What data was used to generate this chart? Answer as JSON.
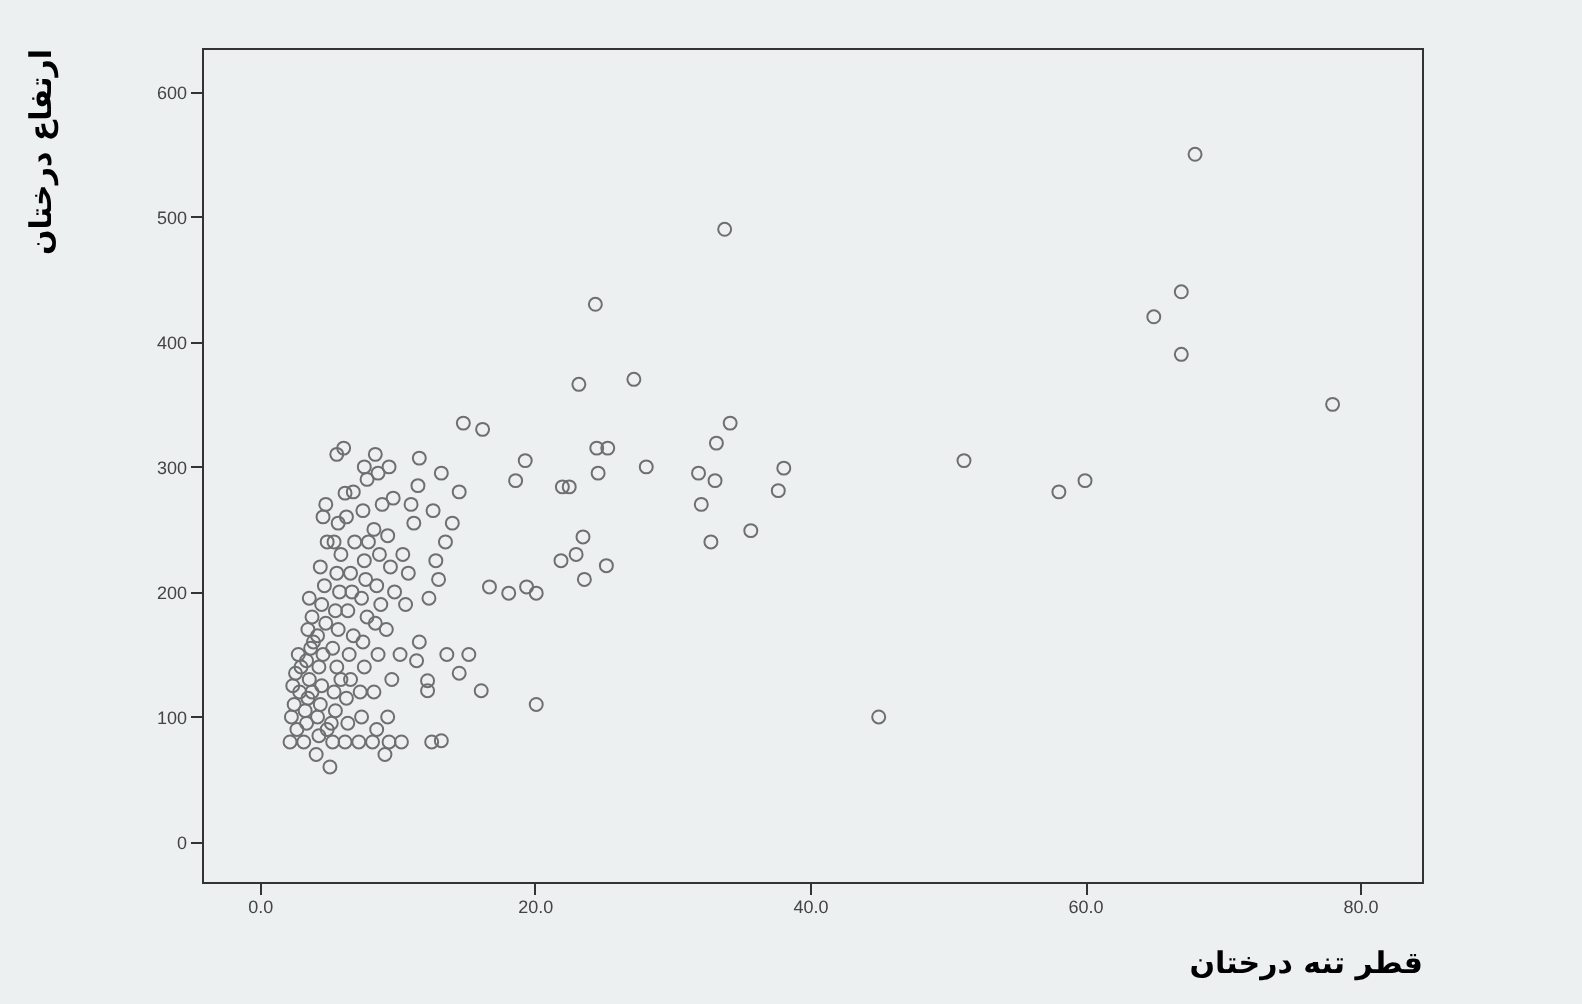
{
  "chart_data": {
    "type": "scatter",
    "xlabel": "قطر تنه درختان",
    "ylabel": "ارتفاع درختان",
    "marker": "circle",
    "xlim": [
      -4.2,
      84.5
    ],
    "ylim": [
      -32,
      635
    ],
    "xticks": [
      {
        "value": 0,
        "label": "0.0"
      },
      {
        "value": 20,
        "label": "20.0"
      },
      {
        "value": 40,
        "label": "40.0"
      },
      {
        "value": 60,
        "label": "60.0"
      },
      {
        "value": 80,
        "label": "80.0"
      }
    ],
    "yticks": [
      0,
      100,
      200,
      300,
      400,
      500,
      600
    ],
    "x": [
      2.2,
      2.3,
      2.5,
      2.4,
      2.6,
      2.8,
      2.7,
      2.9,
      3.0,
      3.2,
      3.4,
      3.3,
      3.5,
      3.6,
      3.4,
      3.7,
      3.5,
      3.8,
      3.6,
      3.9,
      3.8,
      4.1,
      4.3,
      4.2,
      4.4,
      4.5,
      4.3,
      4.6,
      4.2,
      4.8,
      4.5,
      4.7,
      4.4,
      4.9,
      4.6,
      4.8,
      4.9,
      5.1,
      5.3,
      5.2,
      5.5,
      5.4,
      5.6,
      5.3,
      5.7,
      5.5,
      5.8,
      5.6,
      5.9,
      5.4,
      5.7,
      5.6,
      5.9,
      6.2,
      6.4,
      6.3,
      6.6,
      6.5,
      6.8,
      6.4,
      6.7,
      6.6,
      6.9,
      6.3,
      6.8,
      6.1,
      7.2,
      7.4,
      7.3,
      7.6,
      7.5,
      7.8,
      7.4,
      7.7,
      7.6,
      7.9,
      7.5,
      7.8,
      7.6,
      8.2,
      8.5,
      8.3,
      8.6,
      8.4,
      8.8,
      8.5,
      8.7,
      8.3,
      8.9,
      8.6,
      8.4,
      9.1,
      9.4,
      9.3,
      9.6,
      9.2,
      9.8,
      9.5,
      9.3,
      9.7,
      9.4,
      10.3,
      10.6,
      10.4,
      11.2,
      11.0,
      10.8,
      11.5,
      10.2,
      12.5,
      12.3,
      13.0,
      12.8,
      13.5,
      14.0,
      12.6,
      14.5,
      68,
      67,
      65,
      67,
      78,
      51.2,
      58.1,
      60,
      38.1,
      37.7,
      33.8,
      24.4,
      23.2,
      27.2,
      34.2,
      33.2,
      31.9,
      33.1,
      32.1,
      28.1,
      24.5,
      25.3,
      24.6,
      22,
      22.5,
      19.3,
      18.6,
      14.8,
      16.2,
      13.2,
      11.6,
      6.2,
      45,
      20.1,
      35.7,
      32.8,
      23.5,
      23,
      21.9,
      23.6,
      25.2,
      20.1,
      19.4,
      18.1,
      16.7,
      16.1,
      15.2,
      13.6,
      14.5,
      12.2,
      12.2,
      11.4,
      13.2,
      11.6
    ],
    "series": [
      {
        "color": "#6f6f6f",
        "values": [
          80,
          100,
          110,
          125,
          135,
          150,
          90,
          120,
          140,
          80,
          95,
          105,
          115,
          130,
          145,
          155,
          170,
          180,
          195,
          160,
          120,
          70,
          85,
          100,
          110,
          125,
          140,
          150,
          165,
          175,
          190,
          205,
          220,
          240,
          260,
          270,
          90,
          60,
          80,
          95,
          105,
          120,
          140,
          155,
          170,
          185,
          200,
          215,
          230,
          240,
          255,
          310,
          130,
          80,
          95,
          115,
          130,
          150,
          165,
          185,
          200,
          215,
          240,
          260,
          280,
          315,
          80,
          100,
          120,
          140,
          160,
          180,
          195,
          210,
          225,
          240,
          265,
          290,
          300,
          80,
          90,
          120,
          150,
          175,
          190,
          205,
          230,
          250,
          270,
          295,
          310,
          70,
          80,
          100,
          130,
          170,
          200,
          220,
          245,
          275,
          300,
          80,
          190,
          230,
          255,
          270,
          215,
          285,
          150,
          80,
          195,
          210,
          225,
          240,
          255,
          265,
          280,
          550,
          440,
          420,
          390,
          350,
          305,
          280,
          289,
          299,
          281,
          490,
          430,
          366,
          370,
          335,
          319,
          295,
          289,
          270,
          300,
          315,
          315,
          295,
          284,
          284,
          305,
          289,
          335,
          330,
          295,
          307,
          279,
          100,
          110,
          249,
          240,
          244,
          230,
          225,
          210,
          221,
          199,
          204,
          199,
          204,
          121,
          150,
          150,
          135,
          129,
          121,
          145,
          81,
          160
        ]
      }
    ]
  }
}
